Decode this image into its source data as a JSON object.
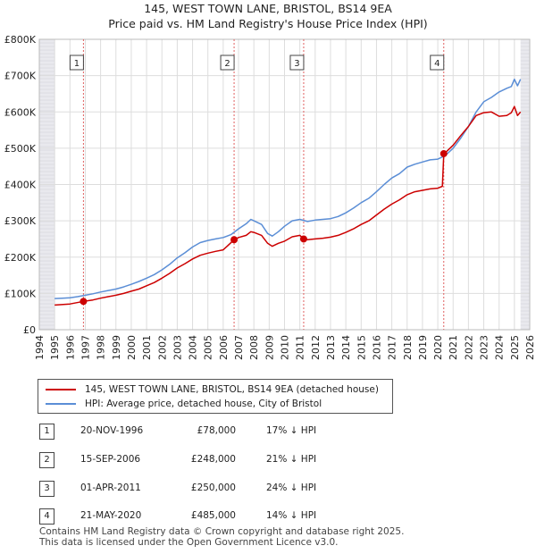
{
  "chart_data": {
    "type": "line",
    "title": "145, WEST TOWN LANE, BRISTOL, BS14 9EA",
    "subtitle": "Price paid vs. HM Land Registry's House Price Index (HPI)",
    "xlim": [
      1994,
      2026
    ],
    "ylim": [
      0,
      800000
    ],
    "x_ticks": [
      "1994",
      "1995",
      "1996",
      "1997",
      "1998",
      "1999",
      "2000",
      "2001",
      "2002",
      "2003",
      "2004",
      "2005",
      "2006",
      "2007",
      "2008",
      "2009",
      "2010",
      "2011",
      "2012",
      "2013",
      "2014",
      "2015",
      "2016",
      "2017",
      "2018",
      "2019",
      "2020",
      "2021",
      "2022",
      "2023",
      "2024",
      "2025",
      "2026"
    ],
    "y_ticks": [
      {
        "value": 0,
        "label": "£0"
      },
      {
        "value": 100000,
        "label": "£100K"
      },
      {
        "value": 200000,
        "label": "£200K"
      },
      {
        "value": 300000,
        "label": "£300K"
      },
      {
        "value": 400000,
        "label": "£400K"
      },
      {
        "value": 500000,
        "label": "£500K"
      },
      {
        "value": 600000,
        "label": "£600K"
      },
      {
        "value": 700000,
        "label": "£700K"
      },
      {
        "value": 800000,
        "label": "£800K"
      }
    ],
    "series": [
      {
        "name": "HPI: Average price, detached house, City of Bristol",
        "color": "#5b8ed6",
        "points": [
          [
            1995.0,
            86000
          ],
          [
            1995.5,
            87000
          ],
          [
            1996.0,
            88000
          ],
          [
            1996.5,
            91000
          ],
          [
            1997.0,
            95000
          ],
          [
            1997.5,
            99000
          ],
          [
            1998.0,
            104000
          ],
          [
            1998.5,
            108000
          ],
          [
            1999.0,
            112000
          ],
          [
            1999.5,
            118000
          ],
          [
            2000.0,
            125000
          ],
          [
            2000.5,
            133000
          ],
          [
            2001.0,
            142000
          ],
          [
            2001.5,
            152000
          ],
          [
            2002.0,
            165000
          ],
          [
            2002.5,
            180000
          ],
          [
            2003.0,
            198000
          ],
          [
            2003.5,
            212000
          ],
          [
            2004.0,
            228000
          ],
          [
            2004.5,
            240000
          ],
          [
            2005.0,
            246000
          ],
          [
            2005.5,
            250000
          ],
          [
            2006.0,
            254000
          ],
          [
            2006.5,
            262000
          ],
          [
            2007.0,
            278000
          ],
          [
            2007.5,
            292000
          ],
          [
            2007.8,
            304000
          ],
          [
            2008.0,
            300000
          ],
          [
            2008.5,
            290000
          ],
          [
            2008.9,
            265000
          ],
          [
            2009.2,
            258000
          ],
          [
            2009.6,
            270000
          ],
          [
            2010.0,
            285000
          ],
          [
            2010.5,
            300000
          ],
          [
            2011.0,
            304000
          ],
          [
            2011.5,
            298000
          ],
          [
            2012.0,
            302000
          ],
          [
            2012.5,
            304000
          ],
          [
            2013.0,
            306000
          ],
          [
            2013.5,
            312000
          ],
          [
            2014.0,
            322000
          ],
          [
            2014.5,
            335000
          ],
          [
            2015.0,
            350000
          ],
          [
            2015.5,
            362000
          ],
          [
            2016.0,
            380000
          ],
          [
            2016.5,
            400000
          ],
          [
            2017.0,
            418000
          ],
          [
            2017.5,
            430000
          ],
          [
            2018.0,
            448000
          ],
          [
            2018.5,
            456000
          ],
          [
            2019.0,
            462000
          ],
          [
            2019.5,
            468000
          ],
          [
            2020.0,
            470000
          ],
          [
            2020.5,
            480000
          ],
          [
            2021.0,
            500000
          ],
          [
            2021.5,
            528000
          ],
          [
            2022.0,
            560000
          ],
          [
            2022.5,
            600000
          ],
          [
            2023.0,
            628000
          ],
          [
            2023.5,
            640000
          ],
          [
            2024.0,
            655000
          ],
          [
            2024.5,
            665000
          ],
          [
            2024.8,
            670000
          ],
          [
            2025.0,
            690000
          ],
          [
            2025.2,
            672000
          ],
          [
            2025.4,
            690000
          ]
        ]
      },
      {
        "name": "145, WEST TOWN LANE, BRISTOL, BS14 9EA (detached house)",
        "color": "#cc0000",
        "points": [
          [
            1995.0,
            68000
          ],
          [
            1996.0,
            71000
          ],
          [
            1996.88,
            78000
          ],
          [
            1997.5,
            82000
          ],
          [
            1998.0,
            87000
          ],
          [
            1998.5,
            91000
          ],
          [
            1999.0,
            95000
          ],
          [
            1999.5,
            100000
          ],
          [
            2000.0,
            106000
          ],
          [
            2000.5,
            112000
          ],
          [
            2001.0,
            121000
          ],
          [
            2001.5,
            130000
          ],
          [
            2002.0,
            142000
          ],
          [
            2002.5,
            155000
          ],
          [
            2003.0,
            170000
          ],
          [
            2003.5,
            182000
          ],
          [
            2004.0,
            195000
          ],
          [
            2004.5,
            205000
          ],
          [
            2005.0,
            211000
          ],
          [
            2005.5,
            216000
          ],
          [
            2006.0,
            220000
          ],
          [
            2006.71,
            248000
          ],
          [
            2007.0,
            254000
          ],
          [
            2007.5,
            260000
          ],
          [
            2007.8,
            270000
          ],
          [
            2008.0,
            268000
          ],
          [
            2008.5,
            260000
          ],
          [
            2008.9,
            238000
          ],
          [
            2009.2,
            230000
          ],
          [
            2009.6,
            238000
          ],
          [
            2010.0,
            244000
          ],
          [
            2010.5,
            256000
          ],
          [
            2011.0,
            260000
          ],
          [
            2011.25,
            250000
          ],
          [
            2011.5,
            248000
          ],
          [
            2012.0,
            250000
          ],
          [
            2012.5,
            252000
          ],
          [
            2013.0,
            255000
          ],
          [
            2013.5,
            260000
          ],
          [
            2014.0,
            268000
          ],
          [
            2014.5,
            278000
          ],
          [
            2015.0,
            290000
          ],
          [
            2015.5,
            300000
          ],
          [
            2016.0,
            316000
          ],
          [
            2016.5,
            332000
          ],
          [
            2017.0,
            346000
          ],
          [
            2017.5,
            358000
          ],
          [
            2018.0,
            372000
          ],
          [
            2018.5,
            380000
          ],
          [
            2019.0,
            384000
          ],
          [
            2019.5,
            388000
          ],
          [
            2020.0,
            390000
          ],
          [
            2020.3,
            395000
          ],
          [
            2020.39,
            485000
          ],
          [
            2020.6,
            492000
          ],
          [
            2021.0,
            508000
          ],
          [
            2021.5,
            535000
          ],
          [
            2022.0,
            560000
          ],
          [
            2022.5,
            590000
          ],
          [
            2023.0,
            598000
          ],
          [
            2023.5,
            600000
          ],
          [
            2024.0,
            588000
          ],
          [
            2024.5,
            590000
          ],
          [
            2024.8,
            598000
          ],
          [
            2025.0,
            615000
          ],
          [
            2025.2,
            590000
          ],
          [
            2025.4,
            600000
          ]
        ]
      }
    ],
    "sales": [
      {
        "id": "1",
        "x": 1996.88,
        "value": 78000,
        "date": "20-NOV-1996",
        "price": "£78,000",
        "hpi": "17% ↓ HPI"
      },
      {
        "id": "2",
        "x": 2006.71,
        "value": 248000,
        "date": "15-SEP-2006",
        "price": "£248,000",
        "hpi": "21% ↓ HPI"
      },
      {
        "id": "3",
        "x": 2011.25,
        "value": 250000,
        "date": "01-APR-2011",
        "price": "£250,000",
        "hpi": "24% ↓ HPI"
      },
      {
        "id": "4",
        "x": 2020.39,
        "value": 485000,
        "date": "21-MAY-2020",
        "price": "£485,000",
        "hpi": "14% ↓ HPI"
      }
    ],
    "shaded_before": 1995.0,
    "shaded_after": 2025.4
  },
  "legend": {
    "property": "145, WEST TOWN LANE, BRISTOL, BS14 9EA (detached house)",
    "hpi": "HPI: Average price, detached house, City of Bristol"
  },
  "colors": {
    "property": "#cc0000",
    "hpi": "#5b8ed6"
  },
  "footer": {
    "line1": "Contains HM Land Registry data © Crown copyright and database right 2025.",
    "line2": "This data is licensed under the Open Government Licence v3.0."
  }
}
